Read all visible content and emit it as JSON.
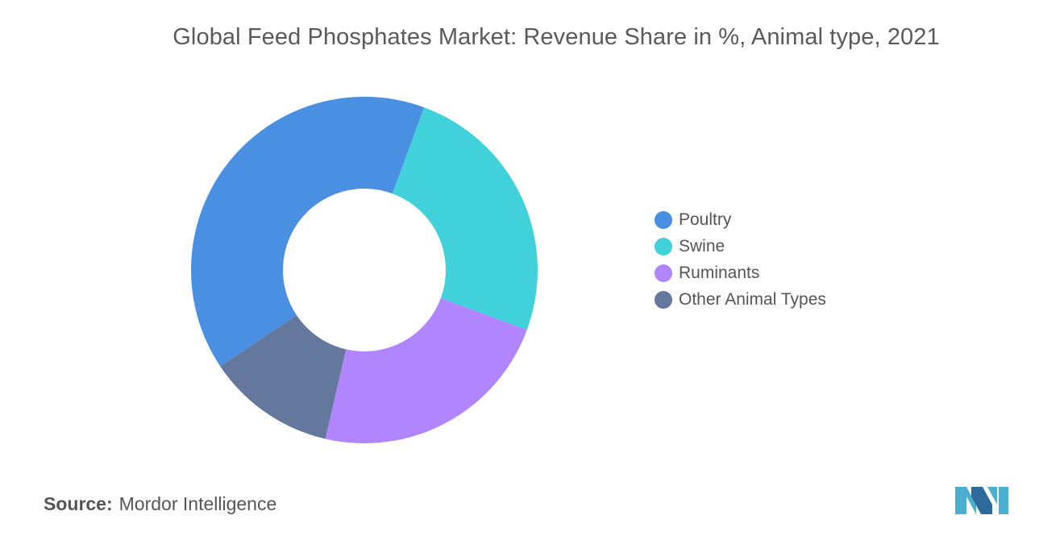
{
  "chart_data": {
    "type": "pie",
    "title": "Global Feed Phosphates Market: Revenue Share in %, Animal type, 2021",
    "donut": true,
    "legend_position": "right",
    "series": [
      {
        "name": "Poultry",
        "value": 40,
        "color": "#4a90e2"
      },
      {
        "name": "Swine",
        "value": 25,
        "color": "#40d1db"
      },
      {
        "name": "Ruminants",
        "value": 23,
        "color": "#b185fd"
      },
      {
        "name": "Other Animal Types",
        "value": 12,
        "color": "#64779c"
      }
    ]
  },
  "source": {
    "label": "Source:",
    "value": "Mordor Intelligence"
  },
  "logo": {
    "icon": "mordor-intelligence-logo-icon",
    "colors": [
      "#4bb0d0",
      "#2d6b9c"
    ]
  }
}
